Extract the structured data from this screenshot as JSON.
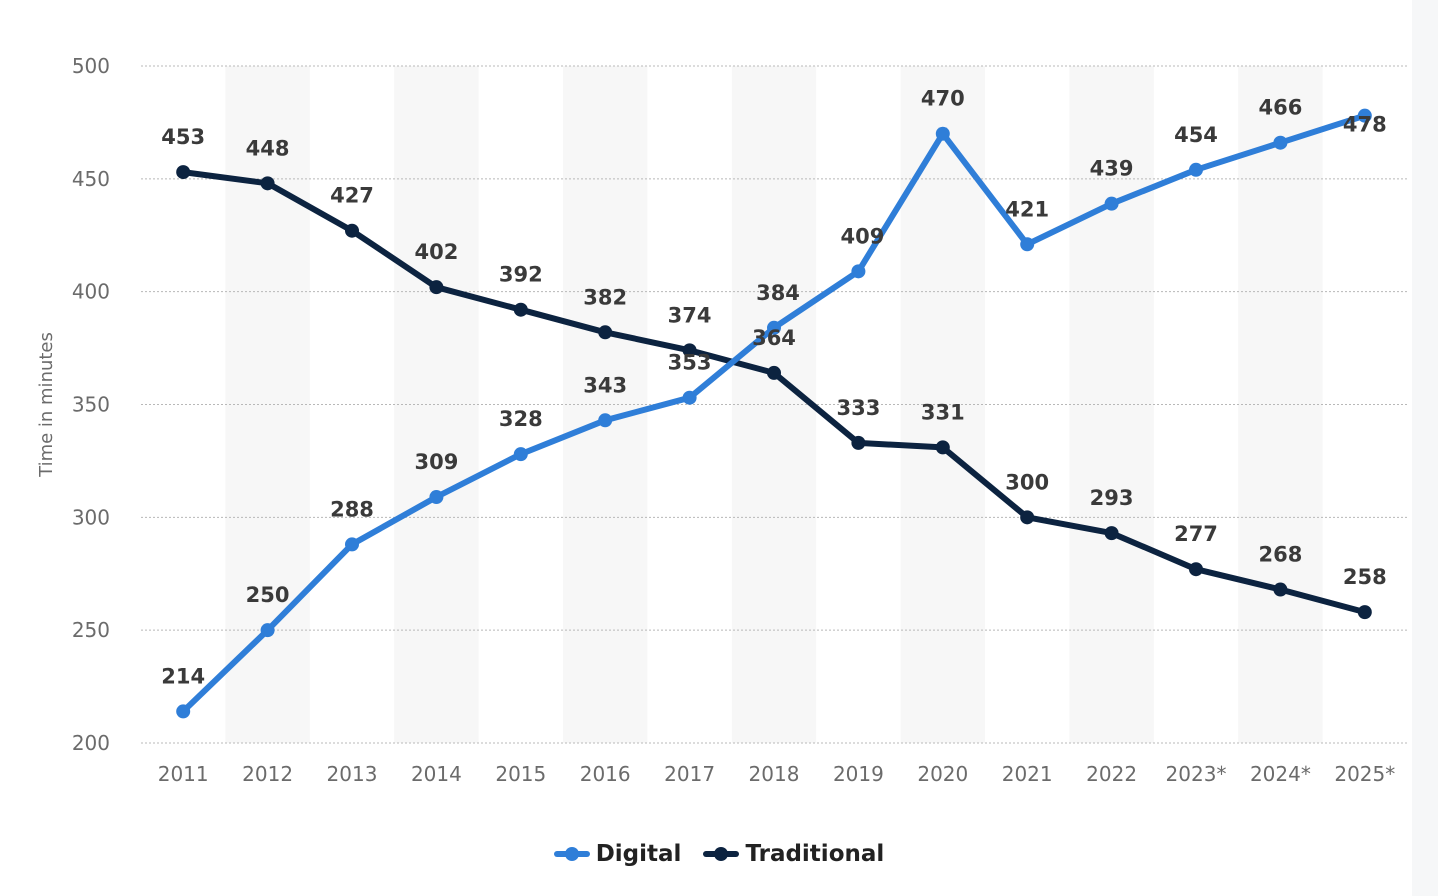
{
  "chart_data": {
    "type": "line",
    "title": "",
    "xlabel": "",
    "ylabel": "Time in minutes",
    "categories": [
      "2011",
      "2012",
      "2013",
      "2014",
      "2015",
      "2016",
      "2017",
      "2018",
      "2019",
      "2020",
      "2021",
      "2022",
      "2023*",
      "2024*",
      "2025*"
    ],
    "ylim": [
      200,
      500
    ],
    "yticks": [
      "200",
      "250",
      "300",
      "350",
      "400",
      "450",
      "500"
    ],
    "grid": true,
    "legend_position": "bottom-center",
    "series": [
      {
        "name": "Digital",
        "color": "#2f7ed8",
        "values": [
          214,
          250,
          288,
          309,
          328,
          343,
          353,
          384,
          409,
          470,
          421,
          439,
          454,
          466,
          478
        ]
      },
      {
        "name": "Traditional",
        "color": "#0c2340",
        "values": [
          453,
          448,
          427,
          402,
          392,
          382,
          374,
          364,
          333,
          331,
          300,
          293,
          277,
          268,
          258
        ]
      }
    ]
  },
  "colors": {
    "band": "#f7f7f7",
    "grid": "#b8b8b8",
    "tick_text": "#6b6b6b",
    "data_label": "#3a3a3a"
  }
}
